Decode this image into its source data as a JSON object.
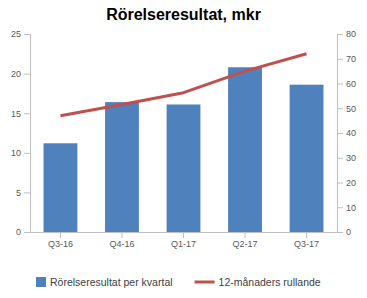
{
  "chart_data": {
    "type": "bar",
    "title": "Rörelseresultat, mkr",
    "categories": [
      "Q3-16",
      "Q4-16",
      "Q1-17",
      "Q2-17",
      "Q3-17"
    ],
    "series": [
      {
        "name": "Rörelseresultat per kvartal",
        "type": "bar",
        "color": "#4f81bd",
        "values": [
          11.2,
          16.4,
          16.1,
          20.8,
          18.6
        ]
      },
      {
        "name": "12-månaders rullande",
        "type": "line",
        "color": "#c0504d",
        "axis": "y2",
        "values": [
          47,
          51.5,
          56.3,
          65,
          72
        ]
      }
    ],
    "ylim": [
      0,
      25
    ],
    "yticks": [
      0,
      5,
      10,
      15,
      20,
      25
    ],
    "y2lim": [
      0,
      80
    ],
    "y2ticks": [
      0,
      10,
      20,
      30,
      40,
      50,
      60,
      70,
      80
    ],
    "grid": false,
    "legend": "bottom"
  }
}
